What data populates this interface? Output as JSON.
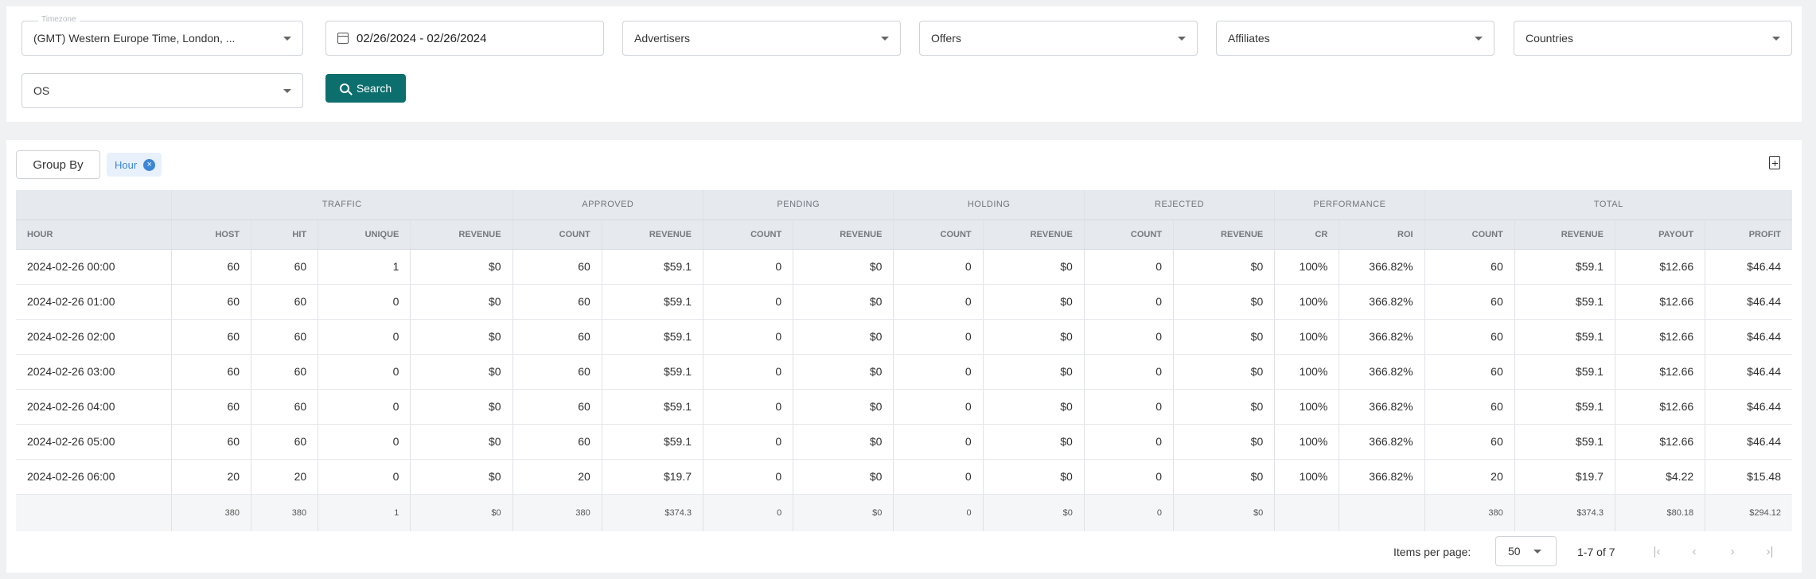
{
  "filters": {
    "timezone": {
      "label": "Timezone",
      "value": "(GMT) Western Europe Time, London, ..."
    },
    "date_range": "02/26/2024 - 02/26/2024",
    "advertisers": "Advertisers",
    "offers": "Offers",
    "affiliates": "Affiliates",
    "countries": "Countries",
    "os": "OS",
    "search_label": "Search"
  },
  "report": {
    "group_by_label": "Group By",
    "group_chip": "Hour",
    "groups": [
      "TRAFFIC",
      "APPROVED",
      "PENDING",
      "HOLDING",
      "REJECTED",
      "PERFORMANCE",
      "TOTAL"
    ],
    "columns": [
      "HOUR",
      "HOST",
      "HIT",
      "UNIQUE",
      "REVENUE",
      "COUNT",
      "REVENUE",
      "COUNT",
      "REVENUE",
      "COUNT",
      "REVENUE",
      "COUNT",
      "REVENUE",
      "CR",
      "ROI",
      "COUNT",
      "REVENUE",
      "PAYOUT",
      "PROFIT"
    ],
    "rows": [
      [
        "2024-02-26 00:00",
        "60",
        "60",
        "1",
        "$0",
        "60",
        "$59.1",
        "0",
        "$0",
        "0",
        "$0",
        "0",
        "$0",
        "100%",
        "366.82%",
        "60",
        "$59.1",
        "$12.66",
        "$46.44"
      ],
      [
        "2024-02-26 01:00",
        "60",
        "60",
        "0",
        "$0",
        "60",
        "$59.1",
        "0",
        "$0",
        "0",
        "$0",
        "0",
        "$0",
        "100%",
        "366.82%",
        "60",
        "$59.1",
        "$12.66",
        "$46.44"
      ],
      [
        "2024-02-26 02:00",
        "60",
        "60",
        "0",
        "$0",
        "60",
        "$59.1",
        "0",
        "$0",
        "0",
        "$0",
        "0",
        "$0",
        "100%",
        "366.82%",
        "60",
        "$59.1",
        "$12.66",
        "$46.44"
      ],
      [
        "2024-02-26 03:00",
        "60",
        "60",
        "0",
        "$0",
        "60",
        "$59.1",
        "0",
        "$0",
        "0",
        "$0",
        "0",
        "$0",
        "100%",
        "366.82%",
        "60",
        "$59.1",
        "$12.66",
        "$46.44"
      ],
      [
        "2024-02-26 04:00",
        "60",
        "60",
        "0",
        "$0",
        "60",
        "$59.1",
        "0",
        "$0",
        "0",
        "$0",
        "0",
        "$0",
        "100%",
        "366.82%",
        "60",
        "$59.1",
        "$12.66",
        "$46.44"
      ],
      [
        "2024-02-26 05:00",
        "60",
        "60",
        "0",
        "$0",
        "60",
        "$59.1",
        "0",
        "$0",
        "0",
        "$0",
        "0",
        "$0",
        "100%",
        "366.82%",
        "60",
        "$59.1",
        "$12.66",
        "$46.44"
      ],
      [
        "2024-02-26 06:00",
        "20",
        "20",
        "0",
        "$0",
        "20",
        "$19.7",
        "0",
        "$0",
        "0",
        "$0",
        "0",
        "$0",
        "100%",
        "366.82%",
        "20",
        "$19.7",
        "$4.22",
        "$15.48"
      ]
    ],
    "totals": [
      "",
      "380",
      "380",
      "1",
      "$0",
      "380",
      "$374.3",
      "0",
      "$0",
      "0",
      "$0",
      "0",
      "$0",
      "",
      "",
      "380",
      "$374.3",
      "$80.18",
      "$294.12"
    ]
  },
  "pagination": {
    "items_per_page_label": "Items per page:",
    "items_per_page": "50",
    "range": "1-7 of 7"
  }
}
